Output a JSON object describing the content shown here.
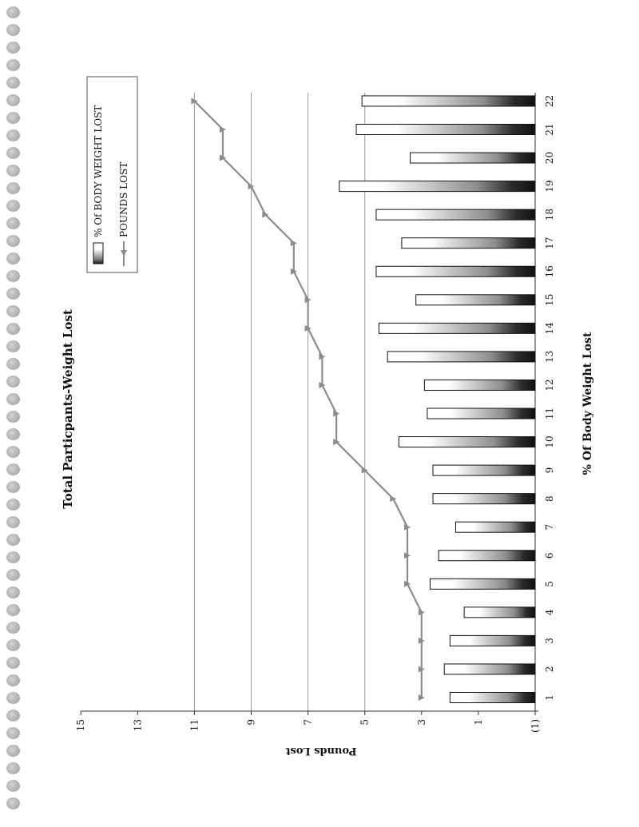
{
  "chart_data": {
    "type": "bar",
    "title": "Total Particpants-Weight Lost",
    "xlabel": "% Of Body Weight Lost",
    "ylabel": "Pounds Lost",
    "orientation": "rotated-90-clockwise",
    "categories": [
      "1",
      "2",
      "3",
      "4",
      "5",
      "6",
      "7",
      "8",
      "9",
      "10",
      "11",
      "12",
      "13",
      "14",
      "15",
      "16",
      "17",
      "18",
      "19",
      "20",
      "21",
      "22"
    ],
    "y_ticks": [
      "(1)",
      "1",
      "3",
      "5",
      "7",
      "9",
      "11",
      "13",
      "15"
    ],
    "ylim": [
      -1,
      15
    ],
    "grid": true,
    "gridlines_at": [
      5,
      7,
      9,
      11
    ],
    "legend_position": "top-right",
    "series": [
      {
        "name": "% Of BODY  WEIGHT LOST",
        "kind": "bar",
        "values": [
          2.0,
          2.2,
          2.0,
          1.5,
          2.7,
          2.4,
          1.8,
          2.6,
          2.6,
          3.8,
          2.8,
          2.9,
          4.2,
          4.5,
          3.2,
          4.6,
          3.7,
          4.6,
          5.9,
          3.4,
          5.3,
          5.1
        ]
      },
      {
        "name": "POUNDS  LOST",
        "kind": "line",
        "values": [
          3,
          3,
          3,
          3,
          3.5,
          3.5,
          3.5,
          4,
          5,
          6,
          6,
          6.5,
          6.5,
          7,
          7,
          7.5,
          7.5,
          8.5,
          9,
          10,
          10,
          11
        ]
      }
    ],
    "colors": {
      "line": "#8c8c8c",
      "bar_dark": "#111111",
      "bar_light": "#ffffff",
      "grid": "#9a9a9a"
    }
  }
}
